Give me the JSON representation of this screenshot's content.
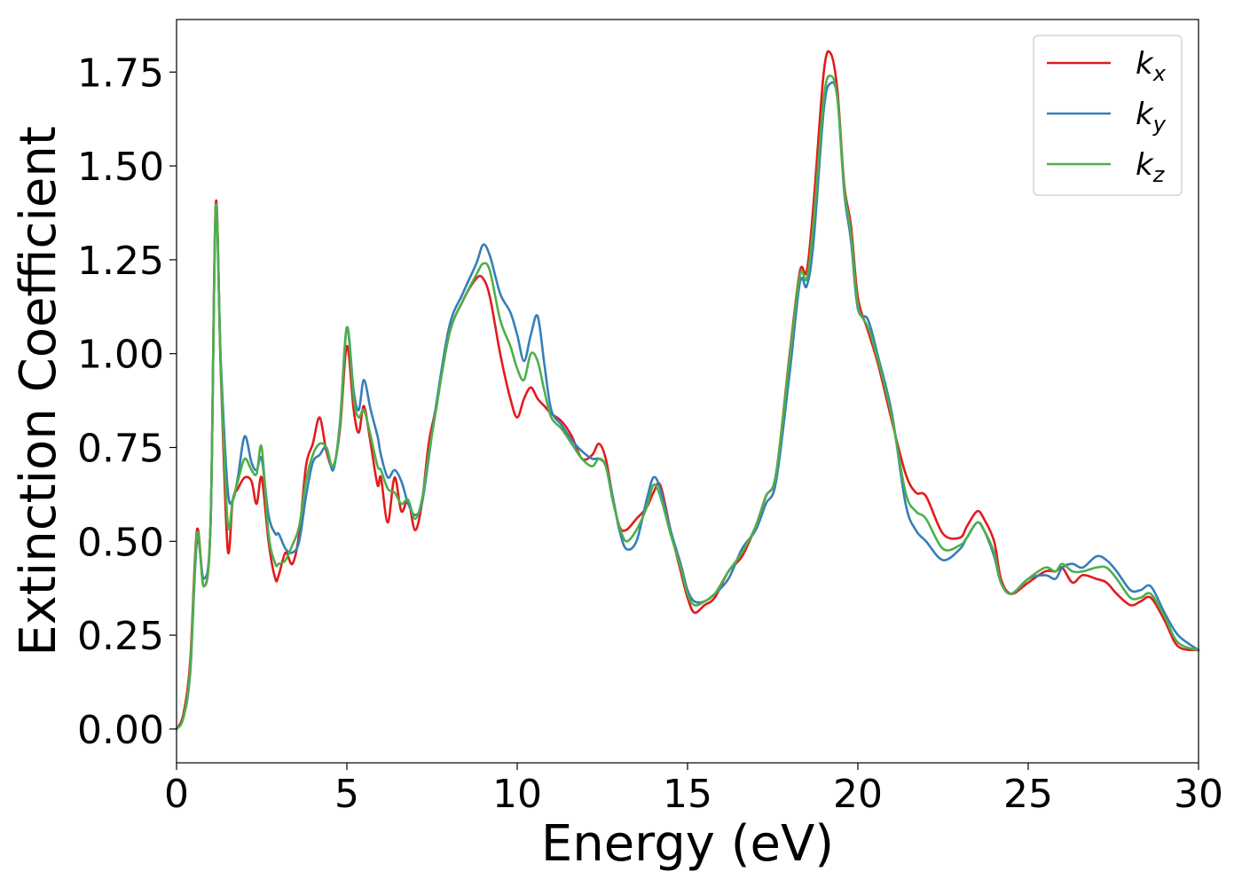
{
  "chart_data": {
    "type": "line",
    "xlabel": "Energy (eV)",
    "ylabel": "Extinction Coefficient",
    "xlim": [
      0,
      30
    ],
    "ylim": [
      -0.09,
      1.89
    ],
    "xticks": [
      0,
      5,
      10,
      15,
      20,
      25,
      30
    ],
    "xtick_labels": [
      "0",
      "5",
      "10",
      "15",
      "20",
      "25",
      "30"
    ],
    "yticks": [
      0.0,
      0.25,
      0.5,
      0.75,
      1.0,
      1.25,
      1.5,
      1.75
    ],
    "ytick_labels": [
      "0.00",
      "0.25",
      "0.50",
      "0.75",
      "1.00",
      "1.25",
      "1.50",
      "1.75"
    ],
    "grid": false,
    "legend_position": "top-right",
    "series": [
      {
        "name": "k_x",
        "label_base": "k",
        "label_sub": "x",
        "color": "#e41a1c",
        "x": [
          0,
          0.2,
          0.4,
          0.6,
          0.8,
          1.0,
          1.15,
          1.3,
          1.5,
          1.65,
          1.8,
          2.0,
          2.2,
          2.35,
          2.5,
          2.7,
          2.9,
          3.0,
          3.2,
          3.4,
          3.6,
          3.8,
          4.0,
          4.2,
          4.4,
          4.6,
          4.8,
          5.0,
          5.2,
          5.35,
          5.5,
          5.7,
          5.9,
          6.0,
          6.2,
          6.4,
          6.6,
          6.8,
          7.0,
          7.2,
          7.4,
          7.6,
          8.0,
          8.4,
          8.8,
          9.0,
          9.2,
          9.5,
          9.8,
          10.0,
          10.2,
          10.4,
          10.6,
          10.8,
          11.0,
          11.3,
          11.6,
          11.9,
          12.2,
          12.4,
          12.6,
          12.8,
          13.0,
          13.2,
          13.5,
          13.8,
          14.0,
          14.2,
          14.5,
          14.8,
          15.0,
          15.2,
          15.5,
          15.8,
          16.2,
          16.6,
          17.0,
          17.3,
          17.6,
          18.0,
          18.3,
          18.5,
          18.7,
          19.0,
          19.2,
          19.4,
          19.6,
          19.8,
          20.0,
          20.3,
          20.6,
          21.0,
          21.4,
          21.7,
          22.0,
          22.5,
          23.0,
          23.2,
          23.5,
          23.7,
          24.0,
          24.2,
          24.5,
          25.0,
          25.5,
          25.8,
          26.0,
          26.3,
          26.6,
          27.0,
          27.3,
          27.6,
          28.0,
          28.3,
          28.6,
          29.0,
          29.4,
          30.0
        ],
        "y": [
          0.0,
          0.04,
          0.18,
          0.53,
          0.38,
          0.55,
          1.4,
          0.95,
          0.48,
          0.61,
          0.64,
          0.67,
          0.66,
          0.6,
          0.67,
          0.5,
          0.4,
          0.41,
          0.47,
          0.44,
          0.52,
          0.7,
          0.76,
          0.83,
          0.74,
          0.7,
          0.8,
          1.02,
          0.85,
          0.79,
          0.86,
          0.76,
          0.65,
          0.67,
          0.55,
          0.67,
          0.58,
          0.61,
          0.53,
          0.6,
          0.76,
          0.85,
          1.05,
          1.14,
          1.2,
          1.2,
          1.15,
          1.0,
          0.88,
          0.83,
          0.88,
          0.91,
          0.88,
          0.86,
          0.84,
          0.82,
          0.78,
          0.72,
          0.73,
          0.76,
          0.72,
          0.62,
          0.54,
          0.53,
          0.56,
          0.59,
          0.63,
          0.65,
          0.53,
          0.42,
          0.35,
          0.31,
          0.33,
          0.35,
          0.42,
          0.46,
          0.54,
          0.62,
          0.68,
          1.0,
          1.22,
          1.22,
          1.4,
          1.75,
          1.8,
          1.7,
          1.45,
          1.34,
          1.15,
          1.06,
          0.97,
          0.82,
          0.68,
          0.63,
          0.62,
          0.52,
          0.51,
          0.54,
          0.58,
          0.56,
          0.5,
          0.4,
          0.36,
          0.39,
          0.42,
          0.42,
          0.43,
          0.39,
          0.41,
          0.4,
          0.39,
          0.36,
          0.33,
          0.34,
          0.35,
          0.29,
          0.22,
          0.21
        ]
      },
      {
        "name": "k_y",
        "label_base": "k",
        "label_sub": "y",
        "color": "#377eb8",
        "x": [
          0,
          0.2,
          0.4,
          0.6,
          0.8,
          1.0,
          1.15,
          1.3,
          1.5,
          1.65,
          1.8,
          2.0,
          2.2,
          2.35,
          2.5,
          2.7,
          2.9,
          3.0,
          3.2,
          3.4,
          3.6,
          3.8,
          4.0,
          4.2,
          4.4,
          4.6,
          4.8,
          5.0,
          5.2,
          5.35,
          5.5,
          5.7,
          5.9,
          6.0,
          6.2,
          6.4,
          6.6,
          6.8,
          7.0,
          7.2,
          7.4,
          7.6,
          8.0,
          8.4,
          8.8,
          9.0,
          9.2,
          9.5,
          9.8,
          10.0,
          10.2,
          10.4,
          10.6,
          10.8,
          11.0,
          11.3,
          11.6,
          11.9,
          12.2,
          12.4,
          12.6,
          12.8,
          13.0,
          13.2,
          13.5,
          13.8,
          14.0,
          14.2,
          14.5,
          14.8,
          15.0,
          15.2,
          15.5,
          15.8,
          16.2,
          16.6,
          17.0,
          17.3,
          17.6,
          18.0,
          18.3,
          18.5,
          18.7,
          19.0,
          19.2,
          19.4,
          19.6,
          19.8,
          20.0,
          20.3,
          20.6,
          21.0,
          21.4,
          21.7,
          22.0,
          22.5,
          23.0,
          23.2,
          23.5,
          23.7,
          24.0,
          24.2,
          24.5,
          25.0,
          25.5,
          25.8,
          26.0,
          26.3,
          26.6,
          27.0,
          27.3,
          27.6,
          28.0,
          28.3,
          28.6,
          29.0,
          29.4,
          30.0
        ],
        "y": [
          0.0,
          0.03,
          0.15,
          0.5,
          0.4,
          0.55,
          1.38,
          0.98,
          0.64,
          0.61,
          0.67,
          0.78,
          0.71,
          0.69,
          0.72,
          0.57,
          0.52,
          0.52,
          0.48,
          0.47,
          0.5,
          0.62,
          0.71,
          0.73,
          0.75,
          0.69,
          0.82,
          1.07,
          0.9,
          0.85,
          0.93,
          0.85,
          0.78,
          0.73,
          0.67,
          0.69,
          0.66,
          0.6,
          0.57,
          0.6,
          0.72,
          0.85,
          1.07,
          1.16,
          1.24,
          1.29,
          1.26,
          1.16,
          1.11,
          1.05,
          0.98,
          1.05,
          1.1,
          0.97,
          0.85,
          0.81,
          0.77,
          0.74,
          0.72,
          0.72,
          0.7,
          0.62,
          0.53,
          0.48,
          0.5,
          0.61,
          0.67,
          0.64,
          0.53,
          0.44,
          0.37,
          0.34,
          0.34,
          0.36,
          0.4,
          0.48,
          0.53,
          0.6,
          0.66,
          0.95,
          1.19,
          1.18,
          1.3,
          1.65,
          1.72,
          1.68,
          1.43,
          1.3,
          1.12,
          1.09,
          0.99,
          0.84,
          0.6,
          0.53,
          0.5,
          0.45,
          0.48,
          0.51,
          0.55,
          0.53,
          0.46,
          0.39,
          0.36,
          0.4,
          0.41,
          0.4,
          0.43,
          0.44,
          0.43,
          0.46,
          0.45,
          0.42,
          0.37,
          0.37,
          0.38,
          0.31,
          0.25,
          0.21
        ]
      },
      {
        "name": "k_z",
        "label_base": "k",
        "label_sub": "z",
        "color": "#4daf4a",
        "x": [
          0,
          0.2,
          0.4,
          0.6,
          0.8,
          1.0,
          1.15,
          1.3,
          1.5,
          1.65,
          1.8,
          2.0,
          2.2,
          2.35,
          2.5,
          2.7,
          2.9,
          3.0,
          3.2,
          3.4,
          3.6,
          3.8,
          4.0,
          4.2,
          4.4,
          4.6,
          4.8,
          5.0,
          5.2,
          5.35,
          5.5,
          5.7,
          5.9,
          6.0,
          6.2,
          6.4,
          6.6,
          6.8,
          7.0,
          7.2,
          7.4,
          7.6,
          8.0,
          8.4,
          8.8,
          9.0,
          9.2,
          9.5,
          9.8,
          10.0,
          10.2,
          10.4,
          10.6,
          10.8,
          11.0,
          11.3,
          11.6,
          11.9,
          12.2,
          12.4,
          12.6,
          12.8,
          13.0,
          13.2,
          13.5,
          13.8,
          14.0,
          14.2,
          14.5,
          14.8,
          15.0,
          15.2,
          15.5,
          15.8,
          16.2,
          16.6,
          17.0,
          17.3,
          17.6,
          18.0,
          18.3,
          18.5,
          18.7,
          19.0,
          19.2,
          19.4,
          19.6,
          19.8,
          20.0,
          20.3,
          20.6,
          21.0,
          21.4,
          21.7,
          22.0,
          22.5,
          23.0,
          23.2,
          23.5,
          23.7,
          24.0,
          24.2,
          24.5,
          25.0,
          25.5,
          25.8,
          26.0,
          26.3,
          26.6,
          27.0,
          27.3,
          27.6,
          28.0,
          28.3,
          28.6,
          29.0,
          29.4,
          30.0
        ],
        "y": [
          0.0,
          0.03,
          0.16,
          0.52,
          0.38,
          0.55,
          1.39,
          0.96,
          0.55,
          0.61,
          0.66,
          0.72,
          0.69,
          0.68,
          0.75,
          0.52,
          0.44,
          0.44,
          0.45,
          0.49,
          0.54,
          0.66,
          0.73,
          0.76,
          0.75,
          0.7,
          0.81,
          1.07,
          0.88,
          0.83,
          0.85,
          0.78,
          0.7,
          0.69,
          0.64,
          0.63,
          0.6,
          0.61,
          0.56,
          0.61,
          0.73,
          0.84,
          1.05,
          1.14,
          1.21,
          1.24,
          1.22,
          1.09,
          1.02,
          0.96,
          0.93,
          1.0,
          0.98,
          0.9,
          0.83,
          0.8,
          0.76,
          0.72,
          0.7,
          0.72,
          0.7,
          0.61,
          0.54,
          0.5,
          0.53,
          0.59,
          0.65,
          0.62,
          0.52,
          0.43,
          0.36,
          0.33,
          0.34,
          0.36,
          0.42,
          0.47,
          0.54,
          0.62,
          0.68,
          0.99,
          1.21,
          1.2,
          1.35,
          1.68,
          1.74,
          1.68,
          1.44,
          1.32,
          1.13,
          1.07,
          0.98,
          0.83,
          0.63,
          0.58,
          0.56,
          0.48,
          0.49,
          0.51,
          0.55,
          0.53,
          0.47,
          0.39,
          0.36,
          0.4,
          0.43,
          0.42,
          0.44,
          0.42,
          0.42,
          0.43,
          0.43,
          0.4,
          0.35,
          0.35,
          0.36,
          0.3,
          0.23,
          0.21
        ]
      }
    ]
  }
}
